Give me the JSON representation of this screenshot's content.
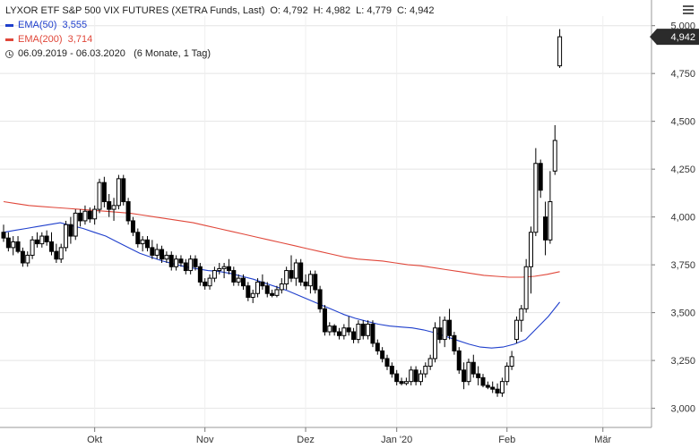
{
  "legend": {
    "title": "LYXOR ETF S&P 500 VIX FUTURES (XETRA Funds, Last)",
    "ohlc": {
      "open_label": "O:",
      "open": "4,792",
      "high_label": "H:",
      "high": "4,982",
      "low_label": "L:",
      "low": "4,779",
      "close_label": "C:",
      "close": "4,942"
    },
    "ema50": {
      "label": "EMA(50)",
      "value": "3,555",
      "color": "#1f3fcc"
    },
    "ema200": {
      "label": "EMA(200)",
      "value": "3,714",
      "color": "#e0473a"
    },
    "range": {
      "dates": "06.09.2019 - 06.03.2020",
      "period": "(6 Monate, 1 Tag)"
    }
  },
  "icons": {
    "menu": "hamburger-menu-icon",
    "clock": "clock-icon"
  },
  "chart_data": {
    "type": "candlestick",
    "ylim": [
      2.9,
      5.05
    ],
    "y_ticks": [
      3.0,
      3.25,
      3.5,
      3.75,
      4.0,
      4.25,
      4.5,
      4.75,
      5.0
    ],
    "y_tick_labels": [
      "3,000",
      "3,250",
      "3,500",
      "3,750",
      "4,000",
      "4,250",
      "4,500",
      "4,750",
      "5,000"
    ],
    "x_labels": [
      {
        "label": "Okt",
        "day": 19
      },
      {
        "label": "Nov",
        "day": 42
      },
      {
        "label": "Dez",
        "day": 63
      },
      {
        "label": "Jan '20",
        "day": 82
      },
      {
        "label": "Feb",
        "day": 105
      },
      {
        "label": "Mär",
        "day": 125
      }
    ],
    "last_price": {
      "value": 4.942,
      "label": "4,942"
    },
    "candles": [
      [
        3.92,
        3.96,
        3.87,
        3.89
      ],
      [
        3.89,
        3.92,
        3.82,
        3.84
      ],
      [
        3.84,
        3.9,
        3.8,
        3.87
      ],
      [
        3.87,
        3.9,
        3.81,
        3.82
      ],
      [
        3.82,
        3.84,
        3.74,
        3.76
      ],
      [
        3.76,
        3.82,
        3.74,
        3.8
      ],
      [
        3.8,
        3.9,
        3.78,
        3.88
      ],
      [
        3.88,
        3.92,
        3.84,
        3.86
      ],
      [
        3.86,
        3.92,
        3.84,
        3.9
      ],
      [
        3.9,
        3.93,
        3.85,
        3.87
      ],
      [
        3.87,
        3.92,
        3.8,
        3.82
      ],
      [
        3.82,
        3.86,
        3.76,
        3.78
      ],
      [
        3.78,
        3.86,
        3.76,
        3.84
      ],
      [
        3.84,
        3.98,
        3.82,
        3.96
      ],
      [
        3.96,
        4.0,
        3.86,
        3.9
      ],
      [
        3.9,
        4.04,
        3.88,
        4.02
      ],
      [
        4.02,
        4.04,
        3.95,
        3.98
      ],
      [
        3.98,
        4.06,
        3.96,
        4.03
      ],
      [
        4.03,
        4.05,
        3.97,
        3.99
      ],
      [
        3.99,
        4.06,
        3.96,
        4.04
      ],
      [
        4.04,
        4.2,
        4.02,
        4.18
      ],
      [
        4.18,
        4.21,
        4.05,
        4.08
      ],
      [
        4.08,
        4.12,
        4.0,
        4.04
      ],
      [
        4.04,
        4.1,
        3.98,
        4.06
      ],
      [
        4.06,
        4.22,
        4.04,
        4.2
      ],
      [
        4.2,
        4.22,
        4.06,
        4.08
      ],
      [
        4.08,
        4.1,
        3.96,
        3.98
      ],
      [
        3.98,
        4.0,
        3.9,
        3.92
      ],
      [
        3.92,
        3.94,
        3.84,
        3.86
      ],
      [
        3.86,
        3.9,
        3.82,
        3.88
      ],
      [
        3.88,
        3.9,
        3.82,
        3.84
      ],
      [
        3.84,
        3.88,
        3.78,
        3.8
      ],
      [
        3.8,
        3.86,
        3.78,
        3.83
      ],
      [
        3.83,
        3.85,
        3.76,
        3.78
      ],
      [
        3.78,
        3.82,
        3.76,
        3.8
      ],
      [
        3.8,
        3.82,
        3.72,
        3.74
      ],
      [
        3.74,
        3.8,
        3.72,
        3.78
      ],
      [
        3.78,
        3.8,
        3.74,
        3.76
      ],
      [
        3.76,
        3.78,
        3.7,
        3.72
      ],
      [
        3.72,
        3.8,
        3.7,
        3.78
      ],
      [
        3.78,
        3.8,
        3.72,
        3.74
      ],
      [
        3.74,
        3.76,
        3.64,
        3.66
      ],
      [
        3.66,
        3.68,
        3.62,
        3.64
      ],
      [
        3.64,
        3.7,
        3.62,
        3.68
      ],
      [
        3.68,
        3.74,
        3.66,
        3.72
      ],
      [
        3.72,
        3.76,
        3.7,
        3.73
      ],
      [
        3.73,
        3.76,
        3.68,
        3.74
      ],
      [
        3.74,
        3.78,
        3.7,
        3.72
      ],
      [
        3.72,
        3.74,
        3.64,
        3.66
      ],
      [
        3.66,
        3.7,
        3.64,
        3.68
      ],
      [
        3.68,
        3.7,
        3.62,
        3.64
      ],
      [
        3.64,
        3.66,
        3.56,
        3.58
      ],
      [
        3.58,
        3.62,
        3.55,
        3.6
      ],
      [
        3.6,
        3.68,
        3.58,
        3.66
      ],
      [
        3.66,
        3.7,
        3.62,
        3.64
      ],
      [
        3.64,
        3.66,
        3.58,
        3.6
      ],
      [
        3.6,
        3.62,
        3.58,
        3.59
      ],
      [
        3.59,
        3.64,
        3.58,
        3.62
      ],
      [
        3.62,
        3.68,
        3.6,
        3.65
      ],
      [
        3.65,
        3.74,
        3.62,
        3.72
      ],
      [
        3.72,
        3.8,
        3.66,
        3.68
      ],
      [
        3.68,
        3.78,
        3.64,
        3.76
      ],
      [
        3.76,
        3.78,
        3.64,
        3.66
      ],
      [
        3.66,
        3.7,
        3.62,
        3.64
      ],
      [
        3.64,
        3.72,
        3.6,
        3.7
      ],
      [
        3.7,
        3.72,
        3.6,
        3.62
      ],
      [
        3.62,
        3.64,
        3.5,
        3.52
      ],
      [
        3.52,
        3.54,
        3.38,
        3.4
      ],
      [
        3.4,
        3.45,
        3.38,
        3.43
      ],
      [
        3.43,
        3.44,
        3.38,
        3.4
      ],
      [
        3.4,
        3.42,
        3.36,
        3.38
      ],
      [
        3.38,
        3.44,
        3.36,
        3.42
      ],
      [
        3.42,
        3.48,
        3.38,
        3.4
      ],
      [
        3.4,
        3.42,
        3.34,
        3.36
      ],
      [
        3.36,
        3.46,
        3.34,
        3.44
      ],
      [
        3.44,
        3.46,
        3.36,
        3.38
      ],
      [
        3.38,
        3.46,
        3.36,
        3.44
      ],
      [
        3.44,
        3.46,
        3.32,
        3.34
      ],
      [
        3.34,
        3.36,
        3.28,
        3.3
      ],
      [
        3.3,
        3.32,
        3.24,
        3.26
      ],
      [
        3.26,
        3.28,
        3.2,
        3.22
      ],
      [
        3.22,
        3.24,
        3.16,
        3.18
      ],
      [
        3.18,
        3.2,
        3.12,
        3.14
      ],
      [
        3.14,
        3.16,
        3.12,
        3.13
      ],
      [
        3.13,
        3.16,
        3.12,
        3.14
      ],
      [
        3.14,
        3.22,
        3.12,
        3.2
      ],
      [
        3.2,
        3.22,
        3.12,
        3.14
      ],
      [
        3.14,
        3.2,
        3.12,
        3.18
      ],
      [
        3.18,
        3.24,
        3.16,
        3.22
      ],
      [
        3.22,
        3.28,
        3.2,
        3.26
      ],
      [
        3.26,
        3.45,
        3.24,
        3.42
      ],
      [
        3.42,
        3.48,
        3.34,
        3.36
      ],
      [
        3.36,
        3.48,
        3.32,
        3.46
      ],
      [
        3.46,
        3.52,
        3.36,
        3.38
      ],
      [
        3.38,
        3.4,
        3.28,
        3.3
      ],
      [
        3.3,
        3.32,
        3.18,
        3.2
      ],
      [
        3.2,
        3.24,
        3.1,
        3.14
      ],
      [
        3.14,
        3.26,
        3.12,
        3.24
      ],
      [
        3.24,
        3.28,
        3.16,
        3.18
      ],
      [
        3.18,
        3.22,
        3.12,
        3.16
      ],
      [
        3.16,
        3.18,
        3.11,
        3.12
      ],
      [
        3.12,
        3.14,
        3.1,
        3.11
      ],
      [
        3.11,
        3.14,
        3.08,
        3.1
      ],
      [
        3.1,
        3.13,
        3.06,
        3.08
      ],
      [
        3.08,
        3.16,
        3.06,
        3.14
      ],
      [
        3.14,
        3.24,
        3.12,
        3.22
      ],
      [
        3.22,
        3.3,
        3.2,
        3.27
      ],
      [
        3.36,
        3.48,
        3.34,
        3.46
      ],
      [
        3.46,
        3.54,
        3.4,
        3.52
      ],
      [
        3.52,
        3.78,
        3.5,
        3.74
      ],
      [
        3.74,
        3.95,
        3.6,
        3.92
      ],
      [
        3.92,
        4.36,
        3.9,
        4.28
      ],
      [
        4.28,
        4.3,
        4.1,
        4.14
      ],
      [
        4.0,
        4.08,
        3.8,
        3.88
      ],
      [
        3.88,
        4.24,
        3.86,
        4.08
      ],
      [
        4.24,
        4.48,
        4.22,
        4.4
      ],
      [
        4.79,
        4.982,
        4.779,
        4.942
      ]
    ],
    "ema50": [
      3.92,
      3.93,
      3.94,
      3.95,
      3.96,
      3.97,
      3.955,
      3.94,
      3.92,
      3.9,
      3.87,
      3.84,
      3.81,
      3.79,
      3.77,
      3.755,
      3.74,
      3.73,
      3.72,
      3.715,
      3.705,
      3.69,
      3.675,
      3.655,
      3.635,
      3.615,
      3.59,
      3.565,
      3.54,
      3.515,
      3.49,
      3.47,
      3.455,
      3.44,
      3.43,
      3.425,
      3.42,
      3.41,
      3.395,
      3.375,
      3.355,
      3.335,
      3.32,
      3.315,
      3.32,
      3.335,
      3.36,
      3.42,
      3.48,
      3.555
    ],
    "ema200": [
      4.08,
      4.07,
      4.06,
      4.055,
      4.05,
      4.045,
      4.04,
      4.035,
      4.03,
      4.025,
      4.02,
      4.01,
      4.0,
      3.99,
      3.98,
      3.97,
      3.955,
      3.94,
      3.925,
      3.91,
      3.895,
      3.88,
      3.865,
      3.85,
      3.835,
      3.82,
      3.805,
      3.79,
      3.78,
      3.775,
      3.77,
      3.76,
      3.75,
      3.745,
      3.735,
      3.725,
      3.715,
      3.705,
      3.695,
      3.69,
      3.685,
      3.685,
      3.69,
      3.7,
      3.714
    ]
  }
}
